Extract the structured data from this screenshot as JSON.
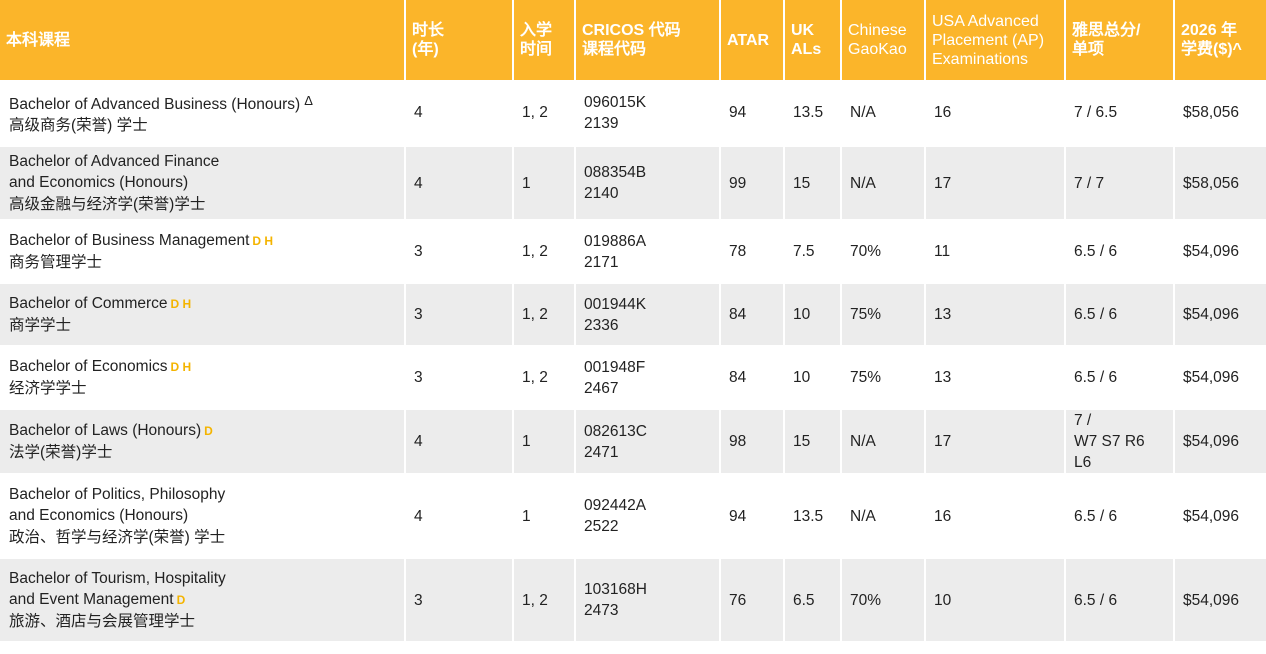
{
  "headers": {
    "course": "本科课程",
    "duration": "时长\n(年)",
    "intake": "入学\n时间",
    "cricos": "CRICOS 代码\n课程代码",
    "atar": "ATAR",
    "uk_als": "UK\nALs",
    "gaokao": "Chinese\nGaoKao",
    "usa_ap": "USA Advanced\nPlacement (AP)\nExaminations",
    "ielts": "雅思总分/\n单项",
    "fee": "2026 年\n学费($)^"
  },
  "accent_color": "#fbb52a",
  "suffix_color": "#f4b400",
  "rows": [
    {
      "course_en": "Bachelor of Advanced Business (Honours)",
      "suffix": "Δ",
      "course_zh": "高级商务(荣誉) 学士",
      "duration": "4",
      "intake": "1, 2",
      "cricos": "096015K",
      "code": "2139",
      "atar": "94",
      "uk": "13.5",
      "gaokao": "N/A",
      "ap": "16",
      "ielts": "7 / 6.5",
      "fee": "$58,056"
    },
    {
      "course_en": "Bachelor of Advanced Finance\nand Economics (Honours)",
      "suffix": "",
      "course_zh": "高级金融与经济学(荣誉)学士",
      "duration": "4",
      "intake": "1",
      "cricos": "088354B",
      "code": "2140",
      "atar": "99",
      "uk": "15",
      "gaokao": "N/A",
      "ap": "17",
      "ielts": "7 / 7",
      "fee": "$58,056"
    },
    {
      "course_en": "Bachelor of Business Management",
      "suffix": "D H",
      "course_zh": "商务管理学士",
      "duration": "3",
      "intake": "1, 2",
      "cricos": "019886A",
      "code": "2171",
      "atar": "78",
      "uk": "7.5",
      "gaokao": "70%",
      "ap": "11",
      "ielts": "6.5 / 6",
      "fee": "$54,096"
    },
    {
      "course_en": "Bachelor of Commerce",
      "suffix": "D H",
      "course_zh": "商学学士",
      "duration": "3",
      "intake": "1, 2",
      "cricos": "001944K",
      "code": "2336",
      "atar": "84",
      "uk": "10",
      "gaokao": "75%",
      "ap": "13",
      "ielts": "6.5 / 6",
      "fee": "$54,096"
    },
    {
      "course_en": "Bachelor of Economics",
      "suffix": "D H",
      "course_zh": "经济学学士",
      "duration": "3",
      "intake": "1, 2",
      "cricos": "001948F",
      "code": "2467",
      "atar": "84",
      "uk": "10",
      "gaokao": "75%",
      "ap": "13",
      "ielts": "6.5 / 6",
      "fee": "$54,096"
    },
    {
      "course_en": "Bachelor of Laws (Honours)",
      "suffix": "D",
      "course_zh": "法学(荣誉)学士",
      "duration": "4",
      "intake": "1",
      "cricos": "082613C",
      "code": "2471",
      "atar": "98",
      "uk": "15",
      "gaokao": "N/A",
      "ap": "17",
      "ielts": "7 /\nW7 S7 R6 L6",
      "fee": "$54,096"
    },
    {
      "course_en": "Bachelor of Politics, Philosophy\nand Economics (Honours)",
      "suffix": "",
      "course_zh": "政治、哲学与经济学(荣誉) 学士",
      "duration": "4",
      "intake": "1",
      "cricos": "092442A",
      "code": "2522",
      "atar": "94",
      "uk": "13.5",
      "gaokao": "N/A",
      "ap": "16",
      "ielts": "6.5 / 6",
      "fee": "$54,096"
    },
    {
      "course_en": "Bachelor of Tourism, Hospitality\nand Event Management",
      "suffix": "D",
      "course_zh": "旅游、酒店与会展管理学士",
      "duration": "3",
      "intake": "1, 2",
      "cricos": "103168H",
      "code": "2473",
      "atar": "76",
      "uk": "6.5",
      "gaokao": "70%",
      "ap": "10",
      "ielts": "6.5 / 6",
      "fee": "$54,096"
    }
  ]
}
